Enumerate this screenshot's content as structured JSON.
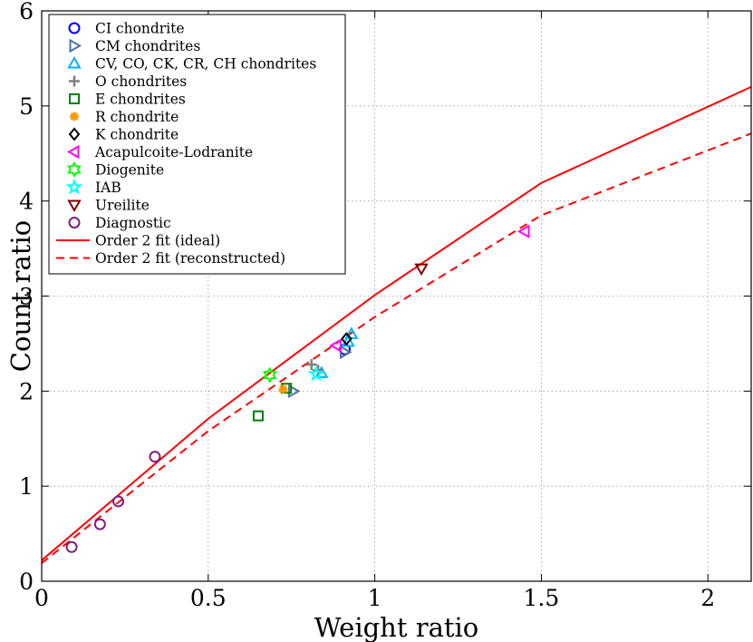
{
  "chart_data": {
    "type": "scatter",
    "title": "",
    "xlabel": "Weight ratio",
    "ylabel": "Count ratio",
    "xlim": [
      0,
      2.13
    ],
    "ylim": [
      0,
      6
    ],
    "xticks": [
      0,
      0.5,
      1,
      1.5,
      2
    ],
    "xtick_labels": [
      "0",
      "0.5",
      "1",
      "1.5",
      "2"
    ],
    "yticks": [
      0,
      1,
      2,
      3,
      4,
      5,
      6
    ],
    "ytick_labels": [
      "0",
      "1",
      "2",
      "3",
      "4",
      "5",
      "6"
    ],
    "grid": true,
    "legend_position": "top-left",
    "series": [
      {
        "name": "CI chondrite",
        "marker": "circle",
        "color": "#0000ff",
        "points": [
          [
            0.91,
            2.44
          ]
        ]
      },
      {
        "name": "CM chondrites",
        "marker": "triangle-right",
        "color": "#4f6fa8",
        "points": [
          [
            0.755,
            2.0
          ],
          [
            0.91,
            2.41
          ]
        ]
      },
      {
        "name": "CV, CO, CK, CR, CH chondrites",
        "marker": "triangle-up",
        "color": "#00b4ff",
        "points": [
          [
            0.84,
            2.19
          ],
          [
            0.92,
            2.52
          ],
          [
            0.93,
            2.6
          ]
        ]
      },
      {
        "name": "O chondrites",
        "marker": "plus",
        "color": "#808080",
        "points": [
          [
            0.81,
            2.28
          ],
          [
            0.83,
            2.22
          ]
        ]
      },
      {
        "name": "E chondrites",
        "marker": "square",
        "color": "#007f00",
        "points": [
          [
            0.65,
            1.74
          ],
          [
            0.735,
            2.03
          ]
        ]
      },
      {
        "name": "R chondrite",
        "marker": "asterisk",
        "color": "#ff9900",
        "points": [
          [
            0.725,
            2.02
          ]
        ]
      },
      {
        "name": "K chondrite",
        "marker": "diamond",
        "color": "#000000",
        "points": [
          [
            0.915,
            2.55
          ]
        ]
      },
      {
        "name": "Acapulcoite-Lodranite",
        "marker": "triangle-left",
        "color": "#ff00ff",
        "points": [
          [
            0.885,
            2.48
          ],
          [
            1.45,
            3.68
          ]
        ]
      },
      {
        "name": "Diogenite",
        "marker": "hexagram",
        "color": "#00ff00",
        "points": [
          [
            0.685,
            2.17
          ]
        ]
      },
      {
        "name": "IAB",
        "marker": "pentagram",
        "color": "#00ffff",
        "points": [
          [
            0.825,
            2.18
          ]
        ]
      },
      {
        "name": "Ureilite",
        "marker": "triangle-down",
        "color": "#7f0000",
        "points": [
          [
            1.14,
            3.29
          ]
        ]
      },
      {
        "name": "Diagnostic",
        "marker": "circle",
        "color": "#7f1f7f",
        "points": [
          [
            0.09,
            0.36
          ],
          [
            0.175,
            0.6
          ],
          [
            0.23,
            0.84
          ],
          [
            0.34,
            1.31
          ]
        ]
      }
    ],
    "fits": [
      {
        "name": "Order 2 fit (ideal)",
        "style": "solid",
        "color": "#ff0000",
        "points": [
          [
            0,
            0.22
          ],
          [
            0.5,
            1.71
          ],
          [
            1,
            3.01
          ],
          [
            1.5,
            4.19
          ],
          [
            2.13,
            5.2
          ]
        ]
      },
      {
        "name": "Order 2 fit (reconstructed)",
        "style": "dashed",
        "color": "#ff0000",
        "points": [
          [
            0,
            0.19
          ],
          [
            0.5,
            1.58
          ],
          [
            1,
            2.78
          ],
          [
            1.5,
            3.85
          ],
          [
            2.13,
            4.71
          ]
        ]
      }
    ]
  }
}
